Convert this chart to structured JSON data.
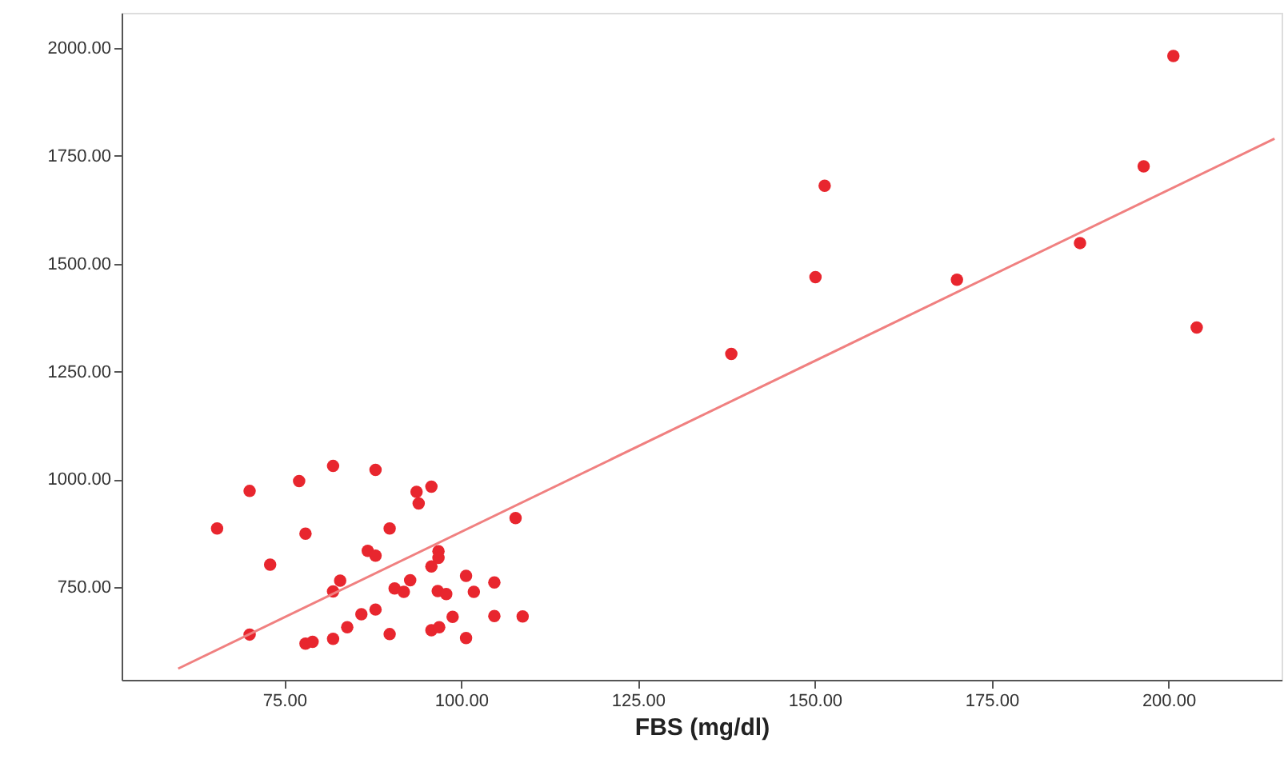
{
  "chart_data": {
    "type": "scatter",
    "xlabel": "FBS (mg/dl)",
    "xlim": [
      52,
      216
    ],
    "ylim": [
      535,
      2082
    ],
    "xticks": [
      {
        "value": 75,
        "label": "75.00"
      },
      {
        "value": 100,
        "label": "100.00"
      },
      {
        "value": 125,
        "label": "125.00"
      },
      {
        "value": 150,
        "label": "150.00"
      },
      {
        "value": 175,
        "label": "175.00"
      },
      {
        "value": 200,
        "label": "200.00"
      }
    ],
    "yticks": [
      {
        "value": 750,
        "label": "750.00"
      },
      {
        "value": 1000,
        "label": "1000.00"
      },
      {
        "value": 1250,
        "label": "1250.00"
      },
      {
        "value": 1500,
        "label": "1500.00"
      },
      {
        "value": 1750,
        "label": "1750.00"
      },
      {
        "value": 2000,
        "label": "2000.00"
      }
    ],
    "grid": false,
    "series": [
      {
        "type": "scatter",
        "marker": "circle",
        "color": "#e8262e",
        "x": [
          65.5,
          70.1,
          77.1,
          81.9,
          87.9,
          93.7,
          95.8,
          94.0,
          78.0,
          89.9,
          107.7,
          73.0,
          86.8,
          87.9,
          96.8,
          96.8,
          95.8,
          82.9,
          81.9,
          92.8,
          90.6,
          91.9,
          96.7,
          97.9,
          100.7,
          101.8,
          104.7,
          85.9,
          87.9,
          83.9,
          98.8,
          104.7,
          108.7,
          70.1,
          78.0,
          79.0,
          81.9,
          89.9,
          95.8,
          96.9,
          100.7,
          138.2,
          150.1,
          151.4,
          170.1,
          187.5,
          196.5,
          200.7,
          204.0
        ],
        "values": [
          886,
          973,
          996,
          1031,
          1022,
          971,
          983,
          944,
          874,
          886,
          910,
          802,
          834,
          823,
          833,
          818,
          798,
          765,
          740,
          766,
          747,
          739,
          741,
          734,
          776,
          739,
          761,
          687,
          698,
          657,
          681,
          683,
          682,
          640,
          619,
          623,
          630,
          641,
          650,
          657,
          632,
          1291,
          1469,
          1681,
          1463,
          1548,
          1726,
          1982,
          1352
        ]
      },
      {
        "type": "line",
        "color": "#f08080",
        "x": [
          60,
          215
        ],
        "values": [
          561,
          1790
        ]
      }
    ]
  }
}
